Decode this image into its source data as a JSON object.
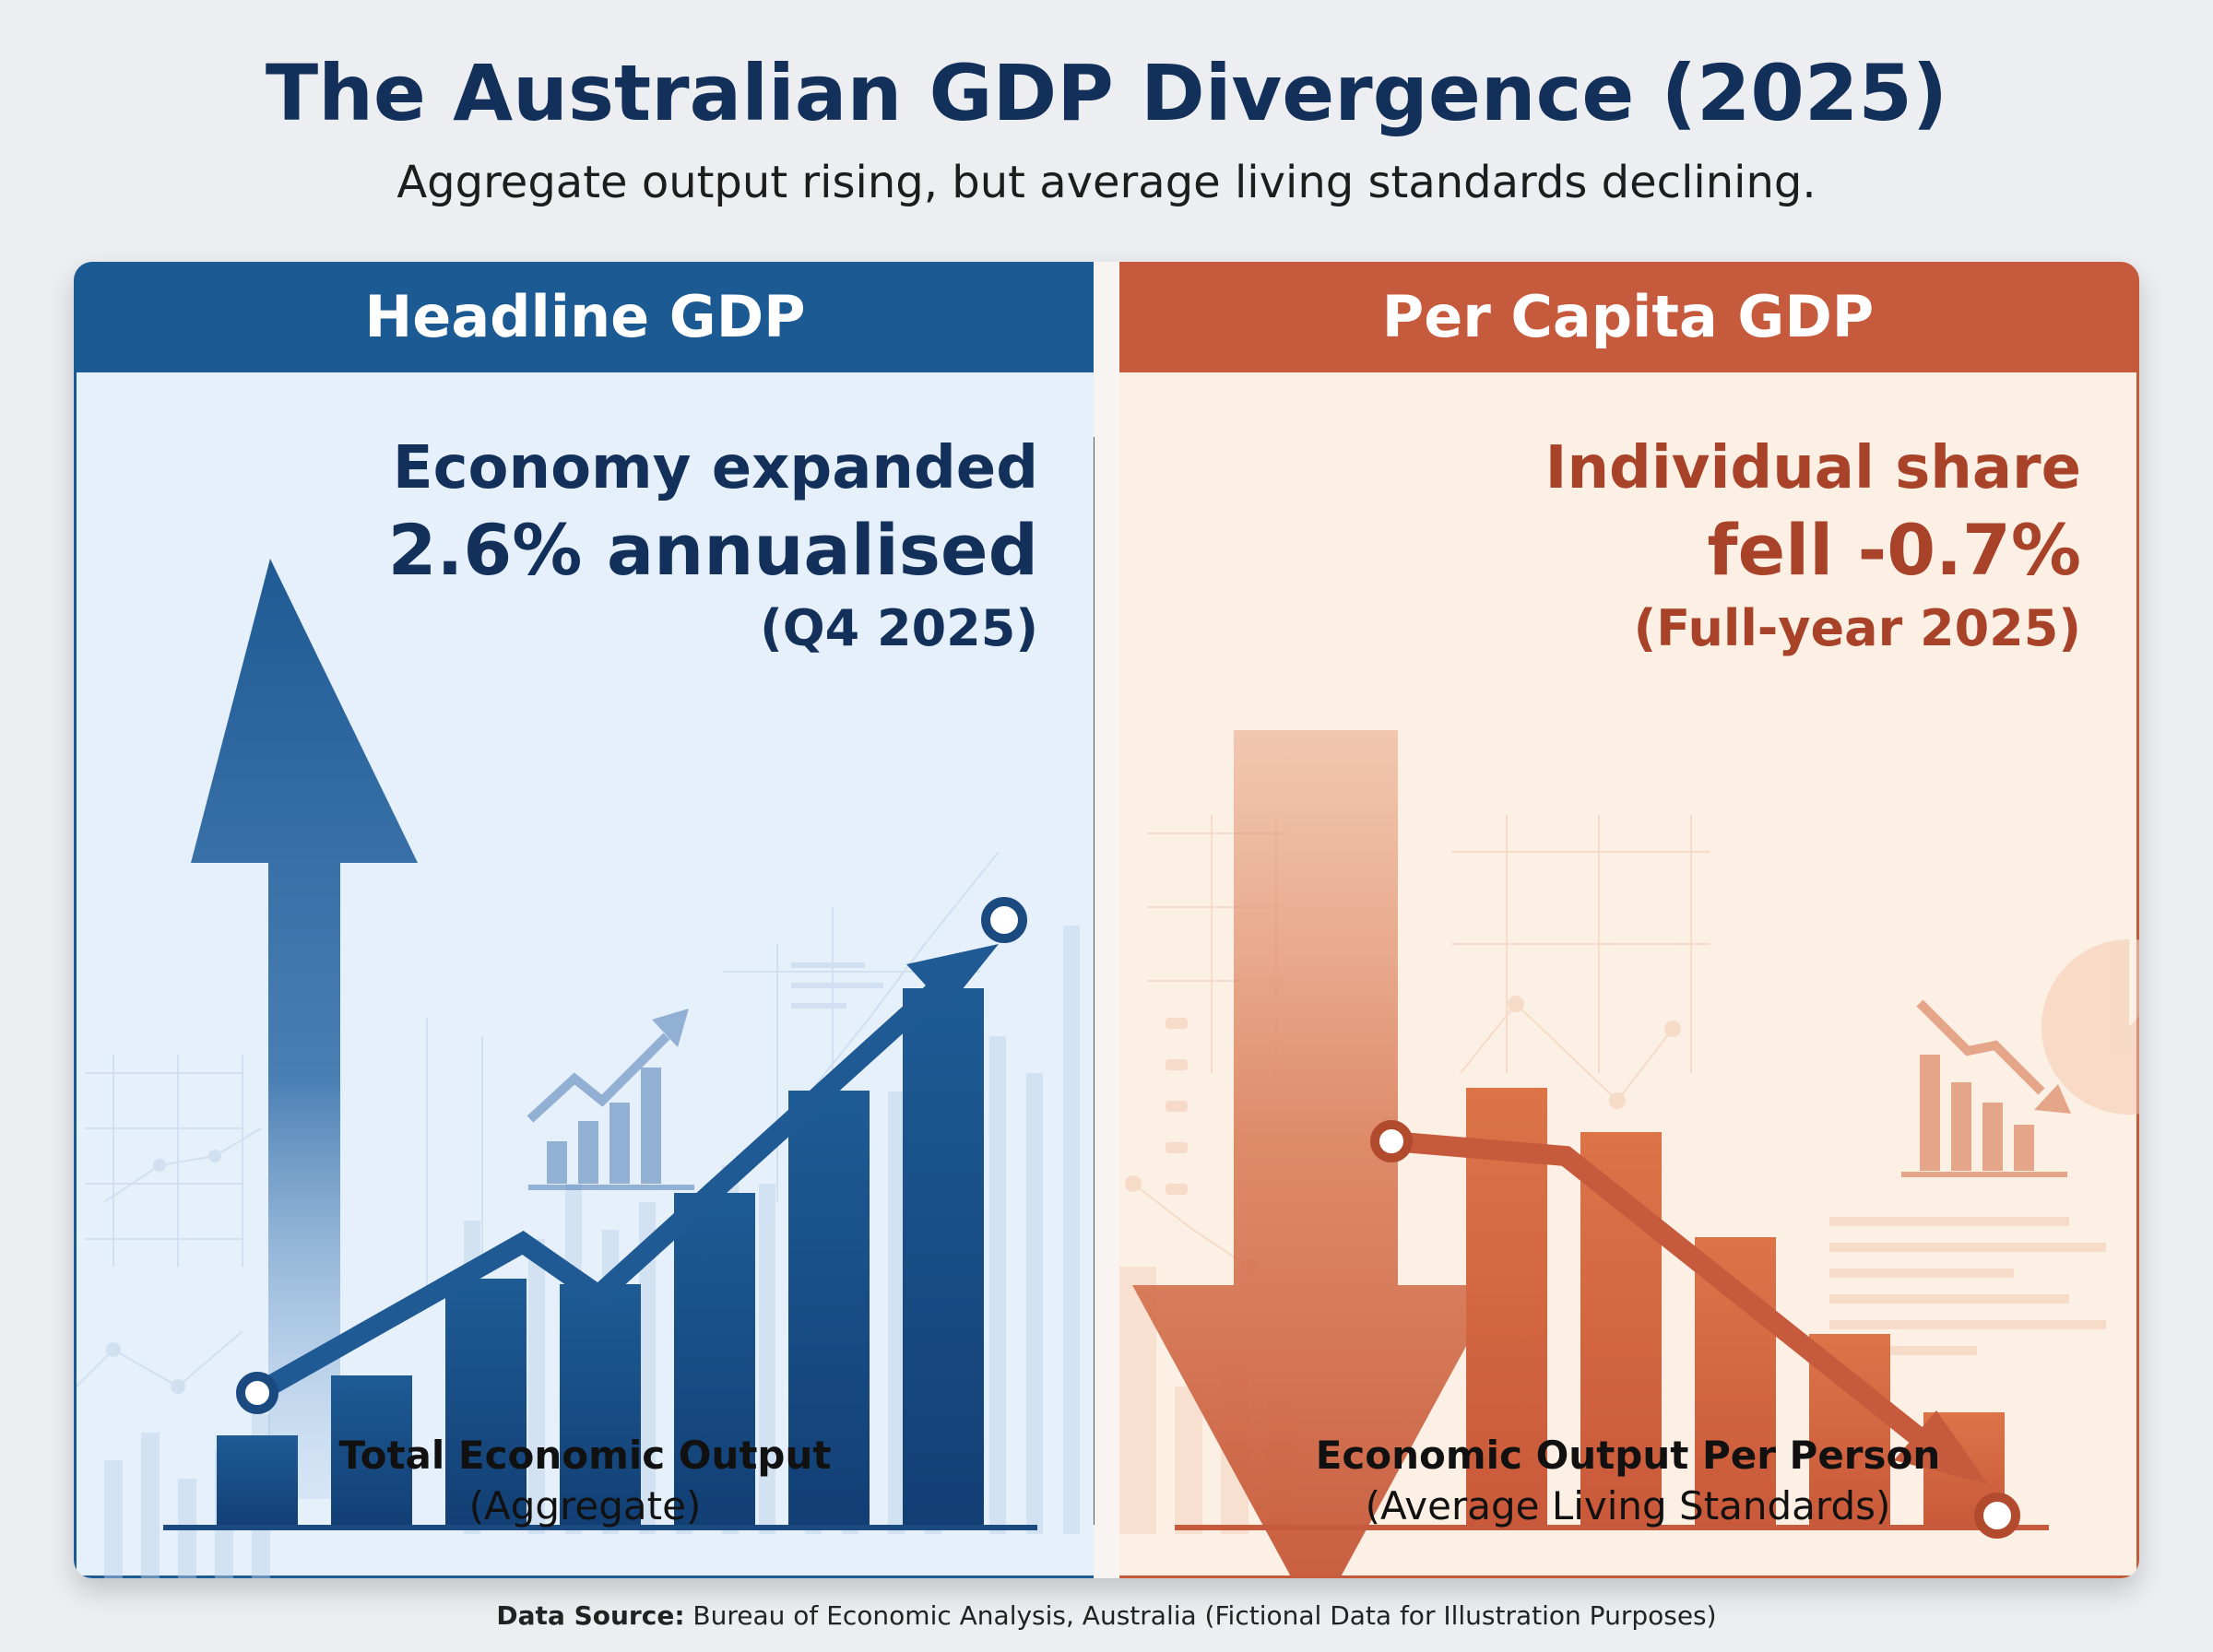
{
  "title": "The Australian GDP Divergence (2025)",
  "subtitle": "Aggregate output rising, but average living standards declining.",
  "left_panel": {
    "header": "Headline GDP",
    "stat_line1": "Economy expanded",
    "stat_line2": "2.6% annualised",
    "stat_line3": "(Q4 2025)",
    "caption_main": "Total Economic Output",
    "caption_sub": "(Aggregate)",
    "color": "#1c5a94",
    "trend": "up",
    "bar_levels": [
      0.17,
      0.28,
      0.46,
      0.45,
      0.62,
      0.81,
      1.0
    ]
  },
  "right_panel": {
    "header": "Per Capita GDP",
    "stat_line1": "Individual share",
    "stat_line2": "fell -0.7%",
    "stat_line3": "(Full-year 2025)",
    "caption_main": "Economic Output Per Person",
    "caption_sub": "(Average Living Standards)",
    "color": "#c65a3c",
    "trend": "down",
    "bar_levels": [
      1.0,
      0.9,
      0.66,
      0.44,
      0.26
    ]
  },
  "source": {
    "label": "Data Source:",
    "text": "Bureau of Economic Analysis, Australia (Fictional Data for Illustration Purposes)"
  },
  "icons": [
    "up-arrow-icon",
    "down-arrow-icon",
    "trend-up-chart-icon",
    "trend-down-chart-icon",
    "pie-chart-icon"
  ]
}
